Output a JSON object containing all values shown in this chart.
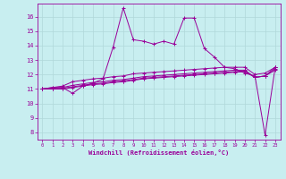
{
  "xlabel": "Windchill (Refroidissement éolien,°C)",
  "background_color": "#c8eef0",
  "grid_color": "#b0d8da",
  "line_color": "#990099",
  "spine_color": "#990099",
  "x_ticks": [
    0,
    1,
    2,
    3,
    4,
    5,
    6,
    7,
    8,
    9,
    10,
    11,
    12,
    13,
    14,
    15,
    16,
    17,
    18,
    19,
    20,
    21,
    22,
    23
  ],
  "y_ticks": [
    8,
    9,
    10,
    11,
    12,
    13,
    14,
    15,
    16
  ],
  "ylim": [
    7.5,
    16.9
  ],
  "xlim": [
    -0.5,
    23.5
  ],
  "series": [
    [
      11.0,
      11.1,
      11.1,
      10.7,
      11.2,
      11.4,
      11.7,
      13.9,
      16.6,
      14.4,
      14.3,
      14.1,
      14.3,
      14.1,
      15.9,
      15.9,
      13.8,
      13.2,
      12.5,
      12.4,
      12.1,
      11.9,
      7.8,
      12.5
    ],
    [
      11.0,
      11.1,
      11.2,
      11.5,
      11.6,
      11.7,
      11.75,
      11.85,
      11.9,
      12.05,
      12.1,
      12.15,
      12.2,
      12.25,
      12.3,
      12.35,
      12.4,
      12.45,
      12.5,
      12.5,
      12.5,
      12.0,
      12.1,
      12.5
    ],
    [
      11.0,
      11.05,
      11.1,
      11.25,
      11.35,
      11.45,
      11.5,
      11.6,
      11.65,
      11.75,
      11.85,
      11.9,
      11.95,
      12.0,
      12.05,
      12.1,
      12.15,
      12.2,
      12.25,
      12.3,
      12.3,
      11.8,
      11.9,
      12.5
    ],
    [
      11.0,
      11.0,
      11.05,
      11.15,
      11.25,
      11.35,
      11.4,
      11.5,
      11.55,
      11.65,
      11.75,
      11.8,
      11.85,
      11.9,
      11.95,
      12.0,
      12.05,
      12.1,
      12.15,
      12.2,
      12.25,
      11.8,
      11.9,
      12.4
    ],
    [
      11.0,
      11.0,
      11.0,
      11.1,
      11.2,
      11.3,
      11.35,
      11.45,
      11.5,
      11.6,
      11.7,
      11.75,
      11.8,
      11.85,
      11.9,
      11.95,
      12.0,
      12.05,
      12.1,
      12.15,
      12.2,
      11.8,
      11.9,
      12.3
    ]
  ]
}
